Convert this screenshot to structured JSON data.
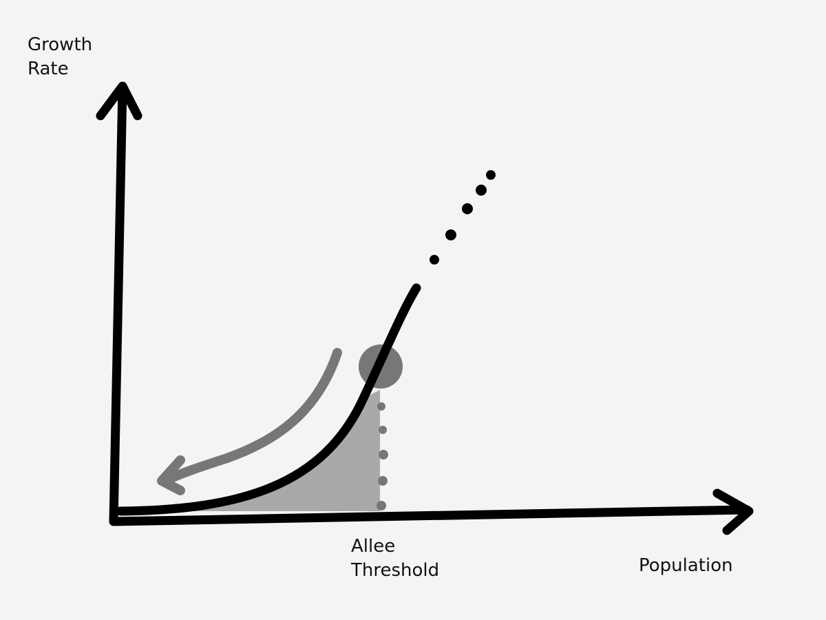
{
  "labels": {
    "y_axis": [
      "Growth",
      "Rate"
    ],
    "threshold": [
      "Allee",
      "Threshold"
    ],
    "x_axis": "Population"
  }
}
